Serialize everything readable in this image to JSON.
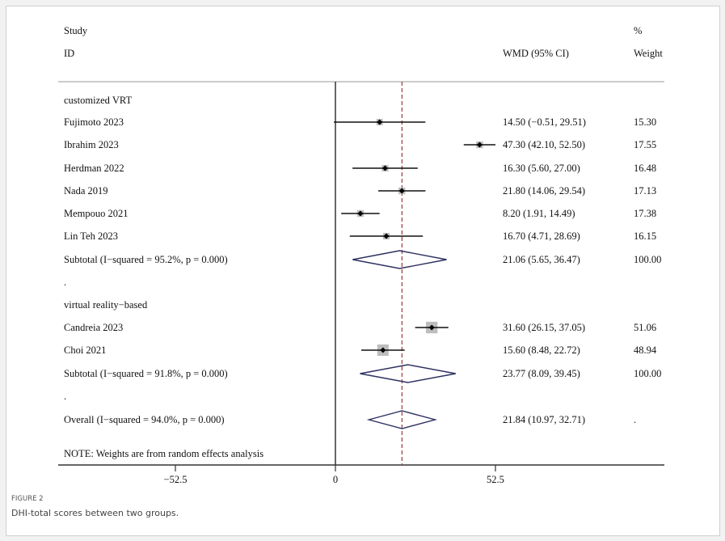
{
  "figure": {
    "label": "FIGURE 2",
    "caption": "DHI-total scores between two groups."
  },
  "chart_data": {
    "type": "forest",
    "headers": {
      "study_line1": "Study",
      "study_line2": "ID",
      "effect": "WMD (95% CI)",
      "weight_line1": "%",
      "weight_line2": "Weight"
    },
    "xaxis": {
      "ticks": [
        -52.5,
        0,
        52.5
      ],
      "tick_labels": [
        "−52.5",
        "0",
        "52.5"
      ],
      "range": [
        -91,
        108
      ]
    },
    "reference_line": 0,
    "overall_line": 21.84,
    "rows": [
      {
        "kind": "group",
        "label": "customized VRT"
      },
      {
        "kind": "study",
        "label": "Fujimoto 2023",
        "est": 14.5,
        "lo": -0.51,
        "hi": 29.51,
        "ci_text": "14.50 (−0.51, 29.51)",
        "weight": "15.30"
      },
      {
        "kind": "study",
        "label": "Ibrahim 2023",
        "est": 47.3,
        "lo": 42.1,
        "hi": 52.5,
        "ci_text": "47.30 (42.10, 52.50)",
        "weight": "17.55"
      },
      {
        "kind": "study",
        "label": "Herdman 2022",
        "est": 16.3,
        "lo": 5.6,
        "hi": 27.0,
        "ci_text": "16.30 (5.60, 27.00)",
        "weight": "16.48"
      },
      {
        "kind": "study",
        "label": "Nada 2019",
        "est": 21.8,
        "lo": 14.06,
        "hi": 29.54,
        "ci_text": "21.80 (14.06, 29.54)",
        "weight": "17.13"
      },
      {
        "kind": "study",
        "label": "Mempouo 2021",
        "est": 8.2,
        "lo": 1.91,
        "hi": 14.49,
        "ci_text": "8.20 (1.91, 14.49)",
        "weight": "17.38"
      },
      {
        "kind": "study",
        "label": "Lin Teh 2023",
        "est": 16.7,
        "lo": 4.71,
        "hi": 28.69,
        "ci_text": "16.70 (4.71, 28.69)",
        "weight": "16.15"
      },
      {
        "kind": "subtotal",
        "label": "Subtotal  (I−squared = 95.2%, p = 0.000)",
        "est": 21.06,
        "lo": 5.65,
        "hi": 36.47,
        "ci_text": "21.06 (5.65, 36.47)",
        "weight": "100.00"
      },
      {
        "kind": "spacer",
        "label": "."
      },
      {
        "kind": "group",
        "label": "virtual reality−based"
      },
      {
        "kind": "study",
        "label": "Candreia 2023",
        "est": 31.6,
        "lo": 26.15,
        "hi": 37.05,
        "ci_text": "31.60 (26.15, 37.05)",
        "weight": "51.06"
      },
      {
        "kind": "study",
        "label": "Choi 2021",
        "est": 15.6,
        "lo": 8.48,
        "hi": 22.72,
        "ci_text": "15.60 (8.48, 22.72)",
        "weight": "48.94"
      },
      {
        "kind": "subtotal",
        "label": "Subtotal  (I−squared = 91.8%, p = 0.000)",
        "est": 23.77,
        "lo": 8.09,
        "hi": 39.45,
        "ci_text": "23.77 (8.09, 39.45)",
        "weight": "100.00"
      },
      {
        "kind": "spacer",
        "label": "."
      },
      {
        "kind": "overall",
        "label": "Overall  (I−squared = 94.0%, p = 0.000)",
        "est": 21.84,
        "lo": 10.97,
        "hi": 32.71,
        "ci_text": "21.84 (10.97, 32.71)",
        "weight": "."
      }
    ],
    "note": "NOTE: Weights are from random effects analysis",
    "colors": {
      "box": "#bdbdbd",
      "diamond": "#2e3160",
      "overall_line": "#9b3b3b",
      "lines": "#111111"
    }
  }
}
